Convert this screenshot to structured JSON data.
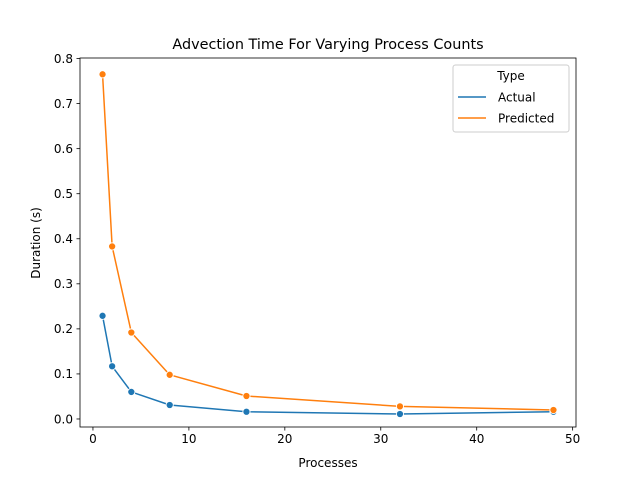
{
  "chart_data": {
    "type": "line",
    "title": "Advection Time For Varying Process Counts",
    "xlabel": "Processes",
    "ylabel": "Duration (s)",
    "xlim": [
      -1.35,
      50.35
    ],
    "ylim": [
      -0.0178,
      0.8012
    ],
    "xticks": [
      0,
      10,
      20,
      30,
      40,
      50
    ],
    "yticks": [
      0.0,
      0.1,
      0.2,
      0.3,
      0.4,
      0.5,
      0.6,
      0.7,
      0.8
    ],
    "xtick_labels": [
      "0",
      "10",
      "20",
      "30",
      "40",
      "50"
    ],
    "ytick_labels": [
      "0.0",
      "0.1",
      "0.2",
      "0.3",
      "0.4",
      "0.5",
      "0.6",
      "0.7",
      "0.8"
    ],
    "grid": false,
    "legend": {
      "title": "Type",
      "position": "top-right"
    },
    "x": [
      1,
      2,
      4,
      8,
      16,
      32,
      48
    ],
    "series": [
      {
        "name": "Actual",
        "color": "#1f77b4",
        "values": [
          0.229,
          0.117,
          0.06,
          0.031,
          0.016,
          0.011,
          0.016
        ]
      },
      {
        "name": "Predicted",
        "color": "#ff7f0e",
        "values": [
          0.765,
          0.383,
          0.192,
          0.098,
          0.051,
          0.028,
          0.02
        ]
      }
    ]
  }
}
